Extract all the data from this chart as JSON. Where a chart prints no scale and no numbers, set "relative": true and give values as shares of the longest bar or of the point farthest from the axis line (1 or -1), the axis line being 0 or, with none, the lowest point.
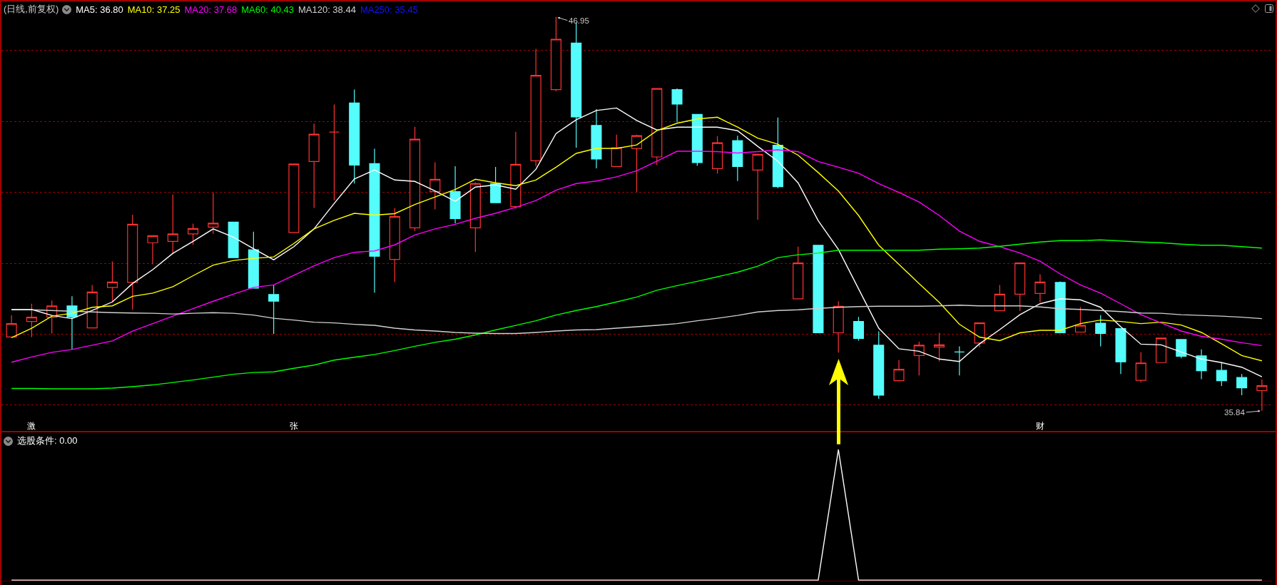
{
  "chart_data": [
    {
      "type": "candlestick",
      "title": "(日线,前复权)",
      "categories": [
        null,
        "激",
        null,
        null,
        null,
        null,
        null,
        null,
        null,
        null,
        null,
        null,
        null,
        null,
        "张",
        null,
        null,
        null,
        null,
        null,
        null,
        null,
        null,
        null,
        null,
        null,
        null,
        null,
        null,
        null,
        null,
        null,
        null,
        null,
        null,
        null,
        null,
        null,
        null,
        null,
        null,
        null,
        null,
        null,
        null,
        null,
        null,
        null,
        null,
        null,
        null,
        "财",
        null,
        null,
        null,
        null,
        null,
        null,
        null,
        null,
        null,
        null,
        null
      ],
      "ohlc": [
        [
          37.92,
          38.54,
          37.92,
          38.3
        ],
        [
          38.36,
          38.86,
          37.92,
          38.48
        ],
        [
          38.48,
          38.95,
          38.02,
          38.8
        ],
        [
          38.8,
          39.07,
          37.57,
          38.49
        ],
        [
          38.18,
          39.39,
          38.18,
          39.19
        ],
        [
          39.32,
          40.05,
          38.91,
          39.47
        ],
        [
          39.46,
          41.37,
          38.69,
          41.1
        ],
        [
          40.58,
          40.78,
          39.97,
          40.78
        ],
        [
          40.62,
          41.94,
          40.28,
          40.83
        ],
        [
          40.83,
          41.12,
          40.52,
          40.98
        ],
        [
          41.02,
          41.99,
          40.83,
          41.13
        ],
        [
          41.16,
          41.16,
          40.15,
          40.16
        ],
        [
          40.38,
          40.89,
          39.3,
          39.3
        ],
        [
          39.12,
          39.39,
          38.01,
          38.93
        ],
        [
          40.87,
          42.8,
          40.87,
          42.8
        ],
        [
          42.87,
          43.94,
          41.56,
          43.64
        ],
        [
          43.7,
          44.48,
          41.77,
          43.7
        ],
        [
          44.52,
          44.9,
          42.25,
          42.77
        ],
        [
          42.81,
          43.23,
          39.17,
          40.2
        ],
        [
          40.11,
          41.56,
          39.47,
          41.32
        ],
        [
          41.0,
          43.85,
          40.91,
          43.5
        ],
        [
          42.02,
          42.85,
          41.52,
          42.37
        ],
        [
          42.02,
          42.74,
          41.13,
          41.26
        ],
        [
          41.0,
          42.28,
          40.32,
          42.25
        ],
        [
          42.25,
          42.72,
          41.71,
          41.71
        ],
        [
          41.6,
          43.71,
          41.54,
          42.79
        ],
        [
          42.89,
          46.05,
          42.74,
          45.3
        ],
        [
          44.9,
          46.95,
          44.85,
          46.32
        ],
        [
          46.21,
          46.79,
          43.26,
          44.13
        ],
        [
          43.89,
          44.35,
          42.68,
          42.94
        ],
        [
          42.73,
          43.63,
          42.73,
          43.26
        ],
        [
          43.24,
          43.63,
          42.02,
          43.6
        ],
        [
          43.0,
          44.93,
          42.77,
          44.93
        ],
        [
          44.9,
          44.93,
          43.98,
          44.49
        ],
        [
          44.2,
          44.2,
          42.75,
          42.84
        ],
        [
          42.67,
          43.59,
          42.53,
          43.4
        ],
        [
          43.46,
          43.6,
          42.32,
          42.73
        ],
        [
          42.63,
          43.09,
          41.23,
          43.07
        ],
        [
          43.33,
          44.11,
          42.12,
          42.16
        ],
        [
          39.0,
          40.47,
          39.0,
          40.01
        ],
        [
          40.51,
          40.52,
          38.04,
          38.04
        ],
        [
          38.04,
          38.93,
          37.48,
          38.79
        ],
        [
          38.36,
          38.49,
          37.82,
          37.88
        ],
        [
          37.69,
          38.08,
          36.18,
          36.28
        ],
        [
          36.69,
          37.27,
          36.67,
          37.01
        ],
        [
          37.4,
          37.79,
          36.84,
          37.69
        ],
        [
          37.64,
          38.04,
          37.23,
          37.7
        ],
        [
          37.5,
          37.66,
          36.84,
          37.5
        ],
        [
          37.75,
          38.32,
          37.63,
          38.32
        ],
        [
          38.66,
          39.39,
          38.66,
          39.13
        ],
        [
          39.13,
          40.01,
          38.66,
          40.01
        ],
        [
          39.15,
          39.69,
          38.9,
          39.47
        ],
        [
          39.46,
          39.49,
          38.04,
          38.04
        ],
        [
          38.06,
          38.77,
          38.06,
          38.25
        ],
        [
          38.31,
          38.54,
          37.66,
          38.02
        ],
        [
          38.16,
          38.16,
          36.88,
          37.22
        ],
        [
          36.7,
          37.49,
          36.64,
          37.19
        ],
        [
          37.2,
          37.9,
          37.2,
          37.89
        ],
        [
          37.85,
          37.85,
          37.32,
          37.38
        ],
        [
          37.39,
          37.57,
          36.73,
          36.97
        ],
        [
          36.98,
          37.21,
          36.54,
          36.69
        ],
        [
          36.78,
          36.88,
          36.28,
          36.49
        ],
        [
          36.41,
          36.72,
          35.84,
          36.55
        ]
      ],
      "colors": [
        "#ff3232",
        "#ff3232",
        "#ff3232",
        "#54fcfc",
        "#ff3232",
        "#ff3232",
        "#ff3232",
        "#ff3232",
        "#ff3232",
        "#ff3232",
        "#ff3232",
        "#54fcfc",
        "#54fcfc",
        "#54fcfc",
        "#ff3232",
        "#ff3232",
        "#ff3232",
        "#54fcfc",
        "#54fcfc",
        "#ff3232",
        "#ff3232",
        "#ff3232",
        "#54fcfc",
        "#ff3232",
        "#54fcfc",
        "#ff3232",
        "#ff3232",
        "#ff3232",
        "#54fcfc",
        "#54fcfc",
        "#ff3232",
        "#ff3232",
        "#ff3232",
        "#54fcfc",
        "#54fcfc",
        "#ff3232",
        "#54fcfc",
        "#ff3232",
        "#54fcfc",
        "#ff3232",
        "#54fcfc",
        "#ff3232",
        "#54fcfc",
        "#54fcfc",
        "#ff3232",
        "#ff3232",
        "#ff3232",
        "#54fcfc",
        "#ff3232",
        "#ff3232",
        "#ff3232",
        "#ff3232",
        "#54fcfc",
        "#ff3232",
        "#54fcfc",
        "#54fcfc",
        "#ff3232",
        "#ff3232",
        "#54fcfc",
        "#54fcfc",
        "#54fcfc",
        "#54fcfc",
        "#ff3232"
      ],
      "series": [
        {
          "type": "line",
          "name": "MA5: 36.80",
          "color": "#ffffff",
          "values": [
            38.7,
            38.7,
            38.53,
            38.44,
            38.67,
            38.91,
            39.43,
            39.82,
            40.28,
            40.62,
            40.97,
            40.74,
            40.41,
            40.1,
            40.47,
            40.97,
            41.69,
            42.38,
            42.63,
            42.35,
            42.31,
            42.04,
            41.75,
            42.15,
            42.21,
            42.09,
            42.65,
            43.66,
            44.05,
            44.31,
            44.38,
            44.03,
            43.76,
            43.84,
            43.84,
            43.84,
            43.74,
            43.3,
            42.88,
            42.27,
            41.2,
            40.39,
            39.28,
            38.17,
            37.59,
            37.52,
            37.3,
            37.23,
            37.73,
            38.13,
            38.55,
            38.86,
            39.0,
            38.97,
            38.76,
            38.21,
            37.72,
            37.7,
            37.5,
            37.3,
            37.2,
            37.07,
            36.8
          ]
        },
        {
          "type": "line",
          "name": "MA10: 37.25",
          "color": "#ffff00",
          "values": [
            37.9,
            38.17,
            38.51,
            38.59,
            38.76,
            38.8,
            39.07,
            39.16,
            39.34,
            39.65,
            39.95,
            40.08,
            40.14,
            40.18,
            40.56,
            40.97,
            41.21,
            41.41,
            41.36,
            41.4,
            41.66,
            41.87,
            42.08,
            42.37,
            42.27,
            42.19,
            42.35,
            42.71,
            43.1,
            43.24,
            43.24,
            43.34,
            43.74,
            43.95,
            44.07,
            44.12,
            43.84,
            43.53,
            43.36,
            43.05,
            42.56,
            42.04,
            41.35,
            40.51,
            39.97,
            39.43,
            38.9,
            38.28,
            37.92,
            37.82,
            38.04,
            38.11,
            38.11,
            38.3,
            38.4,
            38.36,
            38.3,
            38.34,
            38.26,
            38.05,
            37.73,
            37.4,
            37.25
          ]
        },
        {
          "type": "line",
          "name": "MA20: 37.68",
          "color": "#ff00ff",
          "values": [
            37.21,
            37.36,
            37.49,
            37.57,
            37.69,
            37.81,
            38.09,
            38.3,
            38.51,
            38.72,
            38.93,
            39.13,
            39.32,
            39.39,
            39.66,
            39.93,
            40.16,
            40.31,
            40.35,
            40.52,
            40.8,
            40.97,
            41.1,
            41.27,
            41.41,
            41.58,
            41.77,
            42.06,
            42.25,
            42.32,
            42.44,
            42.61,
            42.88,
            43.16,
            43.16,
            43.15,
            43.11,
            43.15,
            43.2,
            43.15,
            42.87,
            42.71,
            42.54,
            42.25,
            42.0,
            41.73,
            41.35,
            40.91,
            40.62,
            40.47,
            40.29,
            40.06,
            39.7,
            39.39,
            39.16,
            38.86,
            38.55,
            38.32,
            38.09,
            37.94,
            37.86,
            37.76,
            37.68
          ]
        },
        {
          "type": "line",
          "name": "MA60: 40.43",
          "color": "#00ff00",
          "values": [
            36.47,
            36.47,
            36.46,
            36.46,
            36.46,
            36.48,
            36.52,
            36.57,
            36.64,
            36.71,
            36.79,
            36.87,
            36.92,
            36.94,
            37.04,
            37.13,
            37.27,
            37.35,
            37.43,
            37.54,
            37.66,
            37.77,
            37.86,
            37.98,
            38.12,
            38.25,
            38.38,
            38.54,
            38.67,
            38.78,
            38.91,
            39.05,
            39.24,
            39.37,
            39.49,
            39.62,
            39.75,
            39.92,
            40.16,
            40.24,
            40.29,
            40.37,
            40.37,
            40.37,
            40.37,
            40.37,
            40.4,
            40.41,
            40.43,
            40.48,
            40.54,
            40.6,
            40.64,
            40.64,
            40.66,
            40.63,
            40.6,
            40.58,
            40.54,
            40.51,
            40.51,
            40.47,
            40.43
          ]
        },
        {
          "type": "line",
          "name": "MA120: 38.44",
          "color": "#d0d0d0",
          "values": [
            38.69,
            38.69,
            38.67,
            38.65,
            38.63,
            38.61,
            38.6,
            38.59,
            38.57,
            38.59,
            38.61,
            38.59,
            38.54,
            38.45,
            38.4,
            38.34,
            38.32,
            38.28,
            38.25,
            38.17,
            38.12,
            38.09,
            38.05,
            38.03,
            38.02,
            38.02,
            38.05,
            38.09,
            38.12,
            38.13,
            38.17,
            38.21,
            38.25,
            38.3,
            38.38,
            38.45,
            38.53,
            38.63,
            38.67,
            38.69,
            38.73,
            38.76,
            38.78,
            38.79,
            38.79,
            38.79,
            38.8,
            38.82,
            38.8,
            38.8,
            38.8,
            38.77,
            38.72,
            38.7,
            38.67,
            38.64,
            38.6,
            38.59,
            38.55,
            38.53,
            38.51,
            38.48,
            38.44
          ]
        },
        {
          "type": "line",
          "name": "MA250: 35.45",
          "color": "#1414ff",
          "values": [
            null,
            null,
            null,
            null,
            null,
            null,
            null,
            null,
            null,
            null,
            null,
            null,
            null,
            null,
            null,
            null,
            null,
            null,
            null,
            null,
            null,
            null,
            null,
            null,
            null,
            null,
            null,
            null,
            null,
            null,
            null,
            null,
            null,
            null,
            null,
            null,
            null,
            null,
            null,
            null,
            null,
            null,
            null,
            null,
            null,
            null,
            null,
            null,
            null,
            null,
            null,
            null,
            null,
            null,
            null,
            null,
            null,
            null,
            null,
            null,
            null,
            null,
            null
          ]
        }
      ],
      "yticks": [
        {
          "value": 36,
          "label": null
        },
        {
          "value": 38,
          "label": null
        },
        {
          "value": 40,
          "label": null
        },
        {
          "value": 42,
          "label": null
        },
        {
          "value": 44,
          "label": null
        },
        {
          "value": 46,
          "label": null
        }
      ],
      "grid": "y",
      "legend": "top left",
      "tick_labels": "x",
      "annotations": [
        "46.95",
        "35.84"
      ]
    },
    {
      "type": "line",
      "categories": [
        null,
        null,
        null,
        null,
        null,
        null,
        null,
        null,
        null,
        null,
        null,
        null,
        null,
        null,
        null,
        null,
        null,
        null,
        null,
        null,
        null,
        null,
        null,
        null,
        null,
        null,
        null,
        null,
        null,
        null,
        null,
        null,
        null,
        null,
        null,
        null,
        null,
        null,
        null,
        null,
        null,
        null,
        null,
        null,
        null,
        null,
        null,
        null,
        null,
        null,
        null,
        null,
        null,
        null,
        null,
        null,
        null,
        null,
        null,
        null,
        null,
        null,
        null
      ],
      "series": [
        {
          "name": "选股条件: 0.00",
          "color": "#ffffff",
          "values": [
            0,
            0,
            0,
            0,
            0,
            0,
            0,
            0,
            0,
            0,
            0,
            0,
            0,
            0,
            0,
            0,
            0,
            0,
            0,
            0,
            0,
            0,
            0,
            0,
            0,
            0,
            0,
            0,
            0,
            0,
            0,
            0,
            0,
            0,
            0,
            0,
            0,
            0,
            0,
            0,
            0,
            1,
            0,
            0,
            0,
            0,
            0,
            0,
            0,
            0,
            0,
            0,
            0,
            0,
            0,
            0,
            0,
            0,
            0,
            0,
            0,
            0,
            0
          ]
        }
      ],
      "relative": true,
      "legend": "top left",
      "tick_labels": false
    }
  ]
}
